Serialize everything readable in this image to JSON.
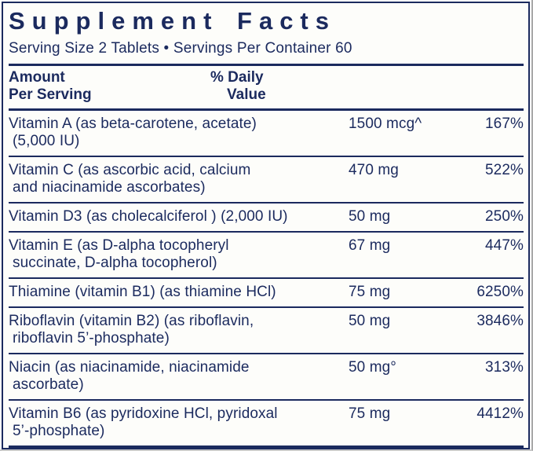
{
  "label": {
    "title": "Supplement Facts",
    "serving_line": "Serving Size 2 Tablets • Servings Per Container 60",
    "header": {
      "amount_line1": "Amount",
      "amount_line2": "Per Serving",
      "dv_line1": "% Daily",
      "dv_line2": "Value"
    },
    "rows": [
      {
        "name_line1": "Vitamin A (as beta-carotene, acetate)",
        "name_line2": "(5,000 IU)",
        "amount": "1500 mcg^",
        "daily_value": "167%"
      },
      {
        "name_line1": "Vitamin C (as ascorbic acid, calcium",
        "name_line2": "and niacinamide ascorbates)",
        "amount": "470 mg",
        "daily_value": "522%"
      },
      {
        "name_line1": "Vitamin D3 (as cholecalciferol ) (2,000 IU)",
        "name_line2": "",
        "amount": "50 mg",
        "daily_value": "250%"
      },
      {
        "name_line1": "Vitamin E (as D-alpha tocopheryl",
        "name_line2": "succinate, D-alpha tocopherol)",
        "amount": "67 mg",
        "daily_value": "447%"
      },
      {
        "name_line1": "Thiamine (vitamin B1) (as thiamine HCl)",
        "name_line2": "",
        "amount": "75 mg",
        "daily_value": "6250%"
      },
      {
        "name_line1": "Riboflavin (vitamin B2) (as riboflavin,",
        "name_line2": "riboflavin 5’-phosphate)",
        "amount": "50 mg",
        "daily_value": "3846%"
      },
      {
        "name_line1": "Niacin (as niacinamide, niacinamide",
        "name_line2": "ascorbate)",
        "amount": "50 mg°",
        "daily_value": "313%"
      },
      {
        "name_line1": "Vitamin B6 (as pyridoxine HCl, pyridoxal",
        "name_line2": "5’-phosphate)",
        "amount": "75 mg",
        "daily_value": "4412%"
      }
    ],
    "colors": {
      "navy": "#1b2a5e",
      "background": "#fdfdfa"
    }
  }
}
